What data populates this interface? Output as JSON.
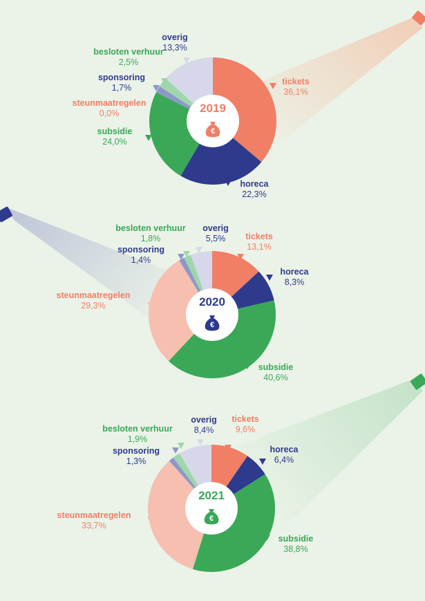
{
  "colors": {
    "tickets": "#f07f66",
    "horeca": "#2e3a8c",
    "subsidie": "#3aa857",
    "steunmaatregelen": "#f6bfb0",
    "sponsoring": "#8e98c8",
    "besloten_verhuur": "#9fd6ac",
    "overig": "#d6d8ea",
    "background": "#ebf3e8"
  },
  "icons": [
    "money-bag-icon",
    "projector-icon"
  ],
  "chart_data": [
    {
      "type": "pie",
      "year": "2019",
      "year_color": "#f07f66",
      "slices": [
        {
          "key": "tickets",
          "name": "tickets",
          "value": 36.1,
          "value_label": "36,1%"
        },
        {
          "key": "horeca",
          "name": "horeca",
          "value": 22.3,
          "value_label": "22,3%"
        },
        {
          "key": "subsidie",
          "name": "subsidie",
          "value": 24.0,
          "value_label": "24,0%"
        },
        {
          "key": "steunmaatregelen",
          "name": "steunmaatregelen",
          "value": 0.0,
          "value_label": "0,0%"
        },
        {
          "key": "sponsoring",
          "name": "sponsoring",
          "value": 1.7,
          "value_label": "1,7%"
        },
        {
          "key": "besloten_verhuur",
          "name": "besloten verhuur",
          "value": 2.5,
          "value_label": "2,5%"
        },
        {
          "key": "overig",
          "name": "overig",
          "value": 13.3,
          "value_label": "13,3%"
        }
      ]
    },
    {
      "type": "pie",
      "year": "2020",
      "year_color": "#2e3a8c",
      "slices": [
        {
          "key": "tickets",
          "name": "tickets",
          "value": 13.1,
          "value_label": "13,1%"
        },
        {
          "key": "horeca",
          "name": "horeca",
          "value": 8.3,
          "value_label": "8,3%"
        },
        {
          "key": "subsidie",
          "name": "subsidie",
          "value": 40.6,
          "value_label": "40,6%"
        },
        {
          "key": "steunmaatregelen",
          "name": "steunmaatregelen",
          "value": 29.3,
          "value_label": "29,3%"
        },
        {
          "key": "sponsoring",
          "name": "sponsoring",
          "value": 1.4,
          "value_label": "1,4%"
        },
        {
          "key": "besloten_verhuur",
          "name": "besloten verhuur",
          "value": 1.8,
          "value_label": "1,8%"
        },
        {
          "key": "overig",
          "name": "overig",
          "value": 5.5,
          "value_label": "5,5%"
        }
      ]
    },
    {
      "type": "pie",
      "year": "2021",
      "year_color": "#3aa857",
      "slices": [
        {
          "key": "tickets",
          "name": "tickets",
          "value": 9.6,
          "value_label": "9,6%"
        },
        {
          "key": "horeca",
          "name": "horeca",
          "value": 6.4,
          "value_label": "6,4%"
        },
        {
          "key": "subsidie",
          "name": "subsidie",
          "value": 38.8,
          "value_label": "38,8%"
        },
        {
          "key": "steunmaatregelen",
          "name": "steunmaatregelen",
          "value": 33.7,
          "value_label": "33,7%"
        },
        {
          "key": "sponsoring",
          "name": "sponsoring",
          "value": 1.3,
          "value_label": "1,3%"
        },
        {
          "key": "besloten_verhuur",
          "name": "besloten verhuur",
          "value": 1.9,
          "value_label": "1,9%"
        },
        {
          "key": "overig",
          "name": "overig",
          "value": 8.4,
          "value_label": "8,4%"
        }
      ]
    }
  ]
}
